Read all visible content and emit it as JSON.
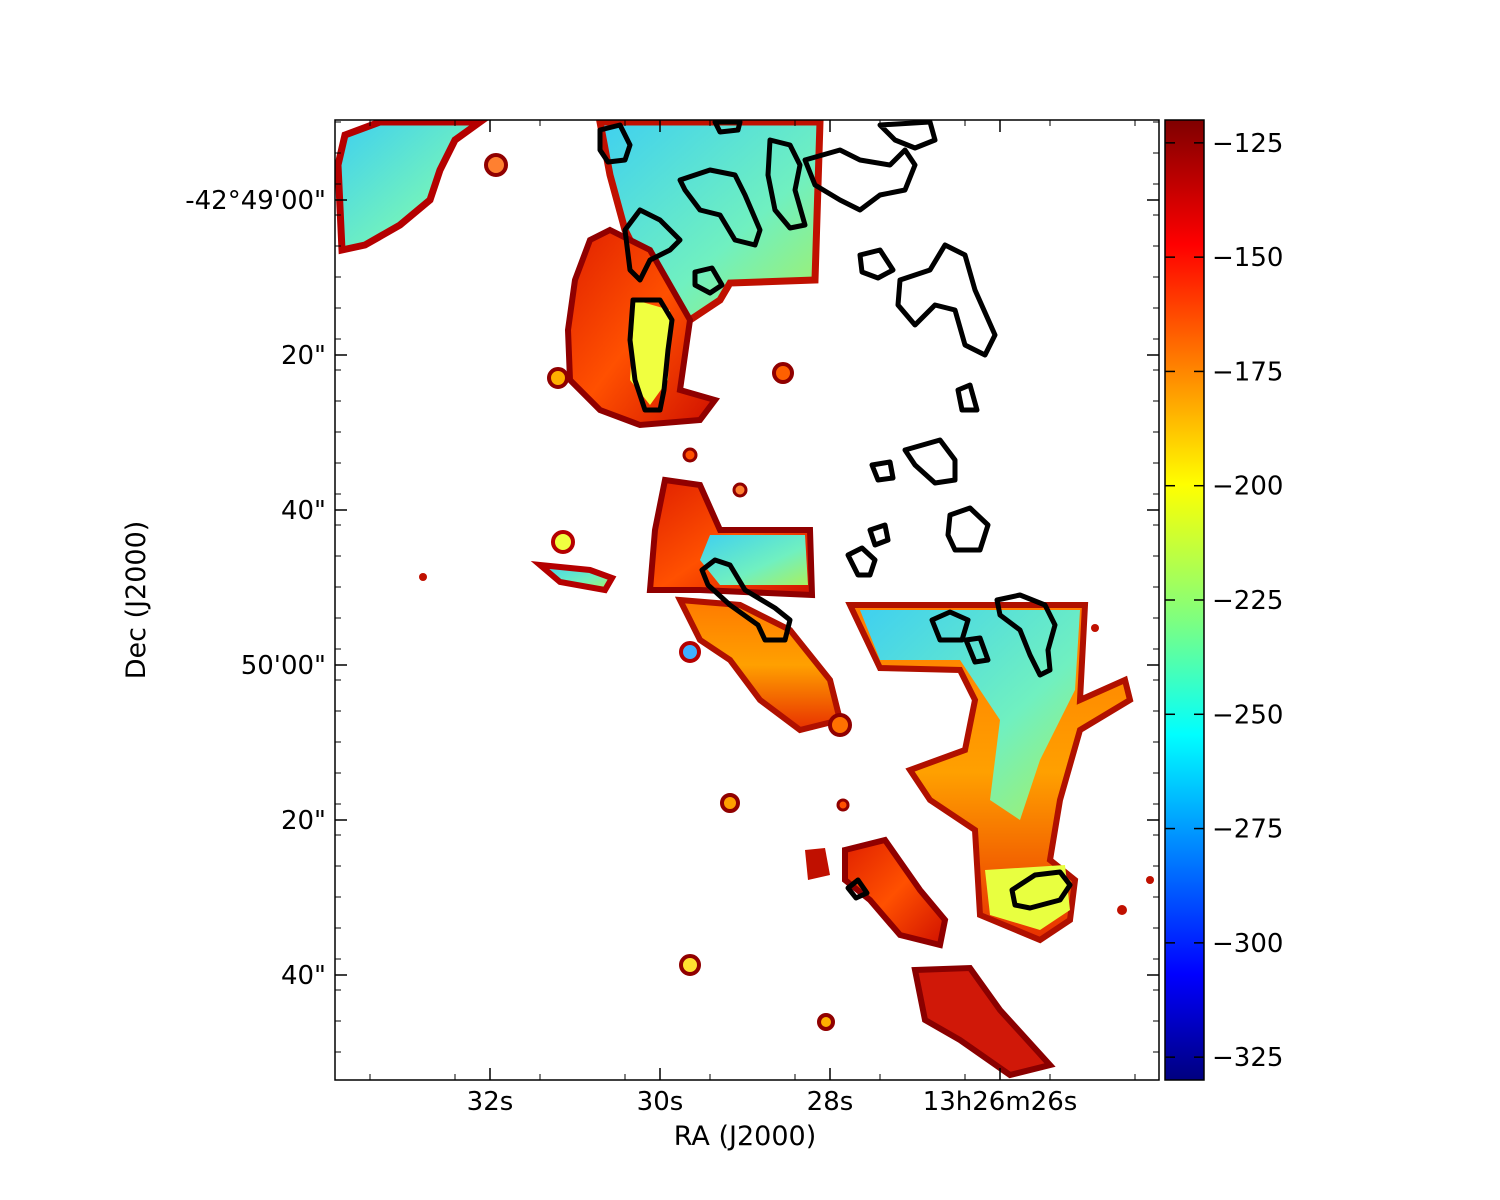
{
  "chart_data": {
    "type": "heatmap",
    "title": "",
    "xlabel": "RA (J2000)",
    "ylabel": "Dec (J2000)",
    "x_ticks": [
      "32s",
      "30s",
      "28s",
      "13h26m26s"
    ],
    "y_ticks": [
      "-42°49'00\"",
      "20\"",
      "40\"",
      "50'00\"",
      "20\"",
      "40\""
    ],
    "colorbar": {
      "colormap": "jet",
      "range": [
        -330,
        -120
      ],
      "ticks": [
        -125,
        -150,
        -175,
        -200,
        -225,
        -250,
        -275,
        -300,
        -325
      ],
      "tick_labels": [
        "−125",
        "−150",
        "−175",
        "−200",
        "−225",
        "−250",
        "−275",
        "−300",
        "−325"
      ]
    },
    "contour_color": "#000000",
    "grid": false,
    "legend": "none"
  }
}
